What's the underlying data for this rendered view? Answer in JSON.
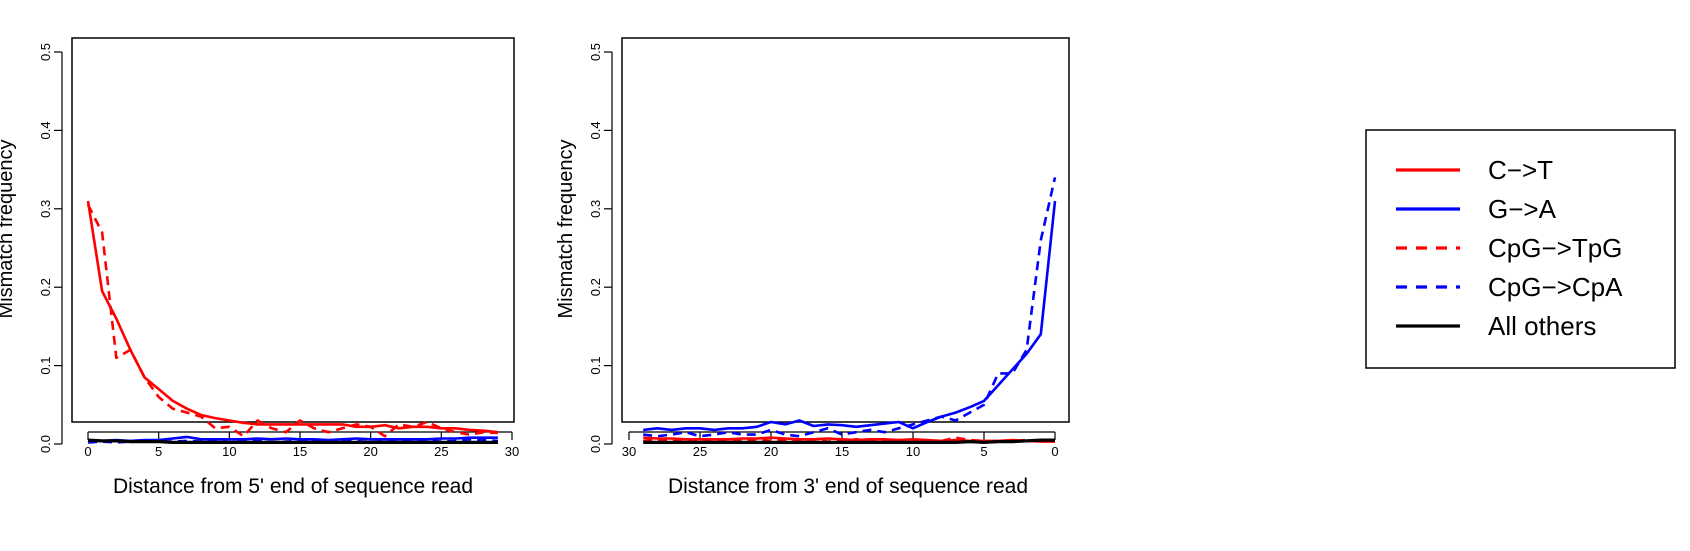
{
  "chart_data": [
    {
      "type": "line",
      "xlabel": "Distance from 5' end of sequence read",
      "ylabel": "Mismatch frequency",
      "xlim": [
        0,
        30
      ],
      "ylim": [
        0,
        0.5
      ],
      "x_reversed": false,
      "xticks": [
        0,
        5,
        10,
        15,
        20,
        25,
        30
      ],
      "yticks": [
        0.0,
        0.1,
        0.2,
        0.3,
        0.4,
        0.5
      ],
      "ytick_labels": [
        "0.0",
        "0.1",
        "0.2",
        "0.3",
        "0.4",
        "0.5"
      ],
      "grid": false,
      "series": [
        {
          "name": "C->T",
          "color": "#ff0000",
          "dashed": false,
          "x": [
            0,
            1,
            2,
            3,
            4,
            5,
            6,
            7,
            8,
            9,
            10,
            11,
            12,
            13,
            14,
            15,
            16,
            17,
            18,
            19,
            20,
            21,
            22,
            23,
            24,
            25,
            26,
            27,
            28,
            29
          ],
          "values": [
            0.31,
            0.195,
            0.16,
            0.12,
            0.085,
            0.07,
            0.055,
            0.045,
            0.037,
            0.033,
            0.03,
            0.027,
            0.025,
            0.025,
            0.025,
            0.025,
            0.025,
            0.025,
            0.025,
            0.022,
            0.022,
            0.024,
            0.02,
            0.022,
            0.022,
            0.02,
            0.02,
            0.018,
            0.017,
            0.015
          ]
        },
        {
          "name": "G->A",
          "color": "#0000ff",
          "dashed": false,
          "x": [
            0,
            1,
            2,
            3,
            4,
            5,
            6,
            7,
            8,
            9,
            10,
            11,
            12,
            13,
            14,
            15,
            16,
            17,
            18,
            19,
            20,
            21,
            22,
            23,
            24,
            25,
            26,
            27,
            28,
            29
          ],
          "values": [
            0.004,
            0.004,
            0.005,
            0.004,
            0.005,
            0.005,
            0.007,
            0.009,
            0.006,
            0.006,
            0.006,
            0.006,
            0.007,
            0.006,
            0.007,
            0.006,
            0.006,
            0.005,
            0.006,
            0.007,
            0.006,
            0.006,
            0.006,
            0.006,
            0.006,
            0.007,
            0.007,
            0.008,
            0.008,
            0.008
          ]
        },
        {
          "name": "CpG->TpG",
          "color": "#ff0000",
          "dashed": true,
          "x": [
            0,
            1,
            2,
            3,
            4,
            5,
            6,
            7,
            8,
            9,
            10,
            11,
            12,
            13,
            14,
            15,
            16,
            17,
            18,
            19,
            20,
            21,
            22,
            23,
            24,
            25,
            26,
            27,
            28,
            29
          ],
          "values": [
            0.305,
            0.27,
            0.11,
            0.12,
            0.085,
            0.06,
            0.045,
            0.04,
            0.035,
            0.02,
            0.022,
            0.01,
            0.03,
            0.02,
            0.015,
            0.03,
            0.02,
            0.015,
            0.02,
            0.025,
            0.022,
            0.01,
            0.025,
            0.022,
            0.028,
            0.02,
            0.015,
            0.012,
            0.015,
            0.014
          ]
        },
        {
          "name": "CpG->CpA",
          "color": "#0000ff",
          "dashed": true,
          "x": [
            0,
            1,
            2,
            3,
            4,
            5,
            6,
            7,
            8,
            9,
            10,
            11,
            12,
            13,
            14,
            15,
            16,
            17,
            18,
            19,
            20,
            21,
            22,
            23,
            24,
            25,
            26,
            27,
            28,
            29
          ],
          "values": [
            0.002,
            0.003,
            0.002,
            0.003,
            0.004,
            0.003,
            0.003,
            0.004,
            0.003,
            0.004,
            0.002,
            0.003,
            0.004,
            0.002,
            0.003,
            0.004,
            0.003,
            0.004,
            0.003,
            0.004,
            0.002,
            0.003,
            0.004,
            0.003,
            0.004,
            0.003,
            0.004,
            0.006,
            0.005,
            0.004
          ]
        },
        {
          "name": "All others",
          "color": "#000000",
          "dashed": false,
          "x": [
            0,
            1,
            2,
            3,
            4,
            5,
            6,
            7,
            8,
            9,
            10,
            11,
            12,
            13,
            14,
            15,
            16,
            17,
            18,
            19,
            20,
            21,
            22,
            23,
            24,
            25,
            26,
            27,
            28,
            29
          ],
          "values": [
            0.005,
            0.004,
            0.004,
            0.003,
            0.003,
            0.003,
            0.002,
            0.002,
            0.002,
            0.002,
            0.002,
            0.002,
            0.002,
            0.002,
            0.002,
            0.002,
            0.002,
            0.002,
            0.002,
            0.002,
            0.002,
            0.002,
            0.002,
            0.002,
            0.002,
            0.002,
            0.002,
            0.002,
            0.002,
            0.002
          ]
        }
      ]
    },
    {
      "type": "line",
      "xlabel": "Distance from 3' end of sequence read",
      "ylabel": "Mismatch frequency",
      "xlim": [
        30,
        0
      ],
      "ylim": [
        0,
        0.5
      ],
      "x_reversed": true,
      "xticks": [
        30,
        25,
        20,
        15,
        10,
        5,
        0
      ],
      "yticks": [
        0.0,
        0.1,
        0.2,
        0.3,
        0.4,
        0.5
      ],
      "ytick_labels": [
        "0.0",
        "0.1",
        "0.2",
        "0.3",
        "0.4",
        "0.5"
      ],
      "grid": false,
      "series": [
        {
          "name": "C->T",
          "color": "#ff0000",
          "dashed": false,
          "x": [
            29,
            28,
            27,
            26,
            25,
            24,
            23,
            22,
            21,
            20,
            19,
            18,
            17,
            16,
            15,
            14,
            13,
            12,
            11,
            10,
            9,
            8,
            7,
            6,
            5,
            4,
            3,
            2,
            1,
            0
          ],
          "values": [
            0.008,
            0.007,
            0.007,
            0.006,
            0.006,
            0.006,
            0.006,
            0.007,
            0.007,
            0.008,
            0.007,
            0.006,
            0.006,
            0.007,
            0.006,
            0.005,
            0.006,
            0.006,
            0.005,
            0.006,
            0.005,
            0.004,
            0.005,
            0.004,
            0.004,
            0.004,
            0.005,
            0.004,
            0.003,
            0.003
          ]
        },
        {
          "name": "G->A",
          "color": "#0000ff",
          "dashed": false,
          "x": [
            29,
            28,
            27,
            26,
            25,
            24,
            23,
            22,
            21,
            20,
            19,
            18,
            17,
            16,
            15,
            14,
            13,
            12,
            11,
            10,
            9,
            8,
            7,
            6,
            5,
            4,
            3,
            2,
            1,
            0
          ],
          "values": [
            0.018,
            0.02,
            0.018,
            0.02,
            0.02,
            0.018,
            0.02,
            0.02,
            0.022,
            0.028,
            0.025,
            0.03,
            0.023,
            0.025,
            0.024,
            0.022,
            0.024,
            0.026,
            0.028,
            0.02,
            0.028,
            0.035,
            0.04,
            0.047,
            0.055,
            0.075,
            0.095,
            0.115,
            0.14,
            0.31
          ]
        },
        {
          "name": "CpG->TpG",
          "color": "#ff0000",
          "dashed": true,
          "x": [
            29,
            28,
            27,
            26,
            25,
            24,
            23,
            22,
            21,
            20,
            19,
            18,
            17,
            16,
            15,
            14,
            13,
            12,
            11,
            10,
            9,
            8,
            7,
            6,
            5,
            4,
            3,
            2,
            1,
            0
          ],
          "values": [
            0.004,
            0.006,
            0.003,
            0.005,
            0.004,
            0.006,
            0.003,
            0.004,
            0.006,
            0.004,
            0.005,
            0.004,
            0.006,
            0.003,
            0.004,
            0.006,
            0.004,
            0.003,
            0.005,
            0.004,
            0.003,
            0.004,
            0.008,
            0.005,
            0.004,
            0.003,
            0.004,
            0.005,
            0.003,
            0.004
          ]
        },
        {
          "name": "CpG->CpA",
          "color": "#0000ff",
          "dashed": true,
          "x": [
            29,
            28,
            27,
            26,
            25,
            24,
            23,
            22,
            21,
            20,
            19,
            18,
            17,
            16,
            15,
            14,
            13,
            12,
            11,
            10,
            9,
            8,
            7,
            6,
            5,
            4,
            3,
            2,
            1,
            0
          ],
          "values": [
            0.012,
            0.01,
            0.012,
            0.015,
            0.01,
            0.012,
            0.015,
            0.012,
            0.012,
            0.018,
            0.012,
            0.01,
            0.015,
            0.02,
            0.012,
            0.015,
            0.018,
            0.015,
            0.02,
            0.025,
            0.03,
            0.035,
            0.03,
            0.04,
            0.05,
            0.09,
            0.09,
            0.12,
            0.26,
            0.34
          ]
        },
        {
          "name": "All others",
          "color": "#000000",
          "dashed": false,
          "x": [
            29,
            28,
            27,
            26,
            25,
            24,
            23,
            22,
            21,
            20,
            19,
            18,
            17,
            16,
            15,
            14,
            13,
            12,
            11,
            10,
            9,
            8,
            7,
            6,
            5,
            4,
            3,
            2,
            1,
            0
          ],
          "values": [
            0.002,
            0.002,
            0.002,
            0.002,
            0.002,
            0.002,
            0.002,
            0.002,
            0.002,
            0.002,
            0.002,
            0.002,
            0.002,
            0.002,
            0.002,
            0.002,
            0.002,
            0.002,
            0.002,
            0.002,
            0.002,
            0.002,
            0.002,
            0.003,
            0.002,
            0.003,
            0.003,
            0.004,
            0.005,
            0.005
          ]
        }
      ]
    }
  ],
  "legend": {
    "placement": "right",
    "items": [
      {
        "label": "C−>T",
        "color": "#ff0000",
        "dashed": false
      },
      {
        "label": "G−>A",
        "color": "#0000ff",
        "dashed": false
      },
      {
        "label": "CpG−>TpG",
        "color": "#ff0000",
        "dashed": true
      },
      {
        "label": "CpG−>CpA",
        "color": "#0000ff",
        "dashed": true
      },
      {
        "label": "All others",
        "color": "#000000",
        "dashed": false
      }
    ]
  }
}
